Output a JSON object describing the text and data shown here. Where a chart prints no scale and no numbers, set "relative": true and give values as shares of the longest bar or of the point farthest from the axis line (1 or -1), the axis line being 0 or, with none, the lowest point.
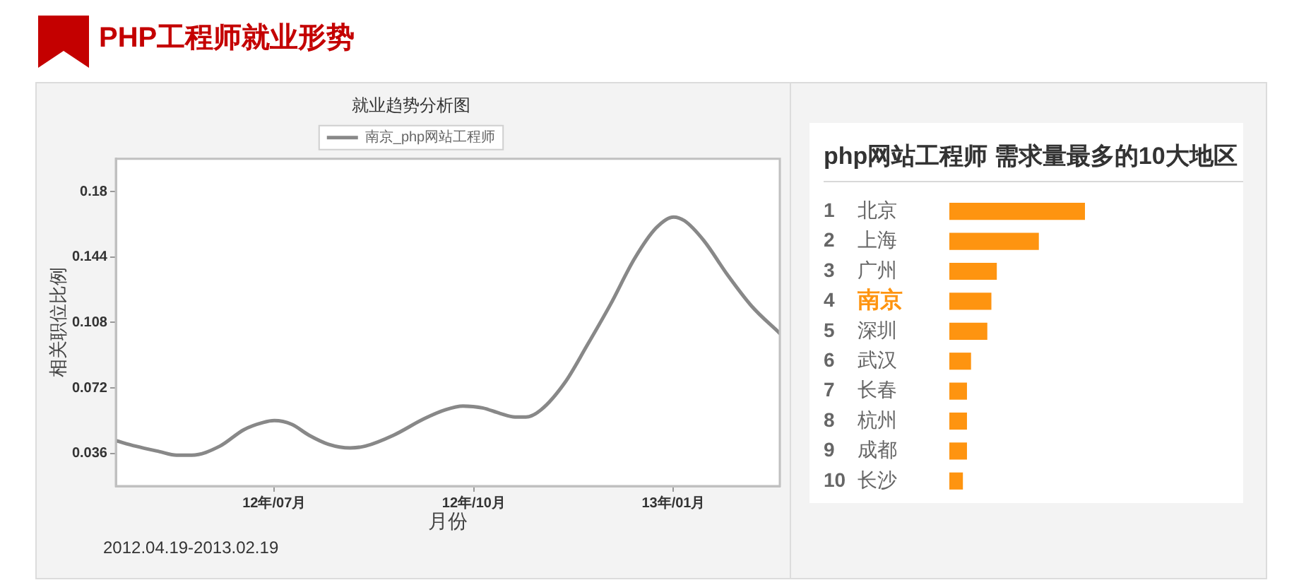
{
  "chart_data": [
    {
      "type": "other",
      "title": "PHP工程师就业形势"
    },
    {
      "type": "line",
      "title": "就业趋势分析图",
      "xlabel": "月份",
      "ylabel": "相关职位比例",
      "legend": "top",
      "x": [
        "2012-04-19",
        "2012-04-28",
        "2012-05-09",
        "2012-05-17",
        "2012-05-24",
        "2012-06-06",
        "2012-06-17",
        "2012-06-26",
        "2012-07-01",
        "2012-07-09",
        "2012-07-17",
        "2012-07-26",
        "2012-08-05",
        "2012-08-12",
        "2012-08-25",
        "2012-09-08",
        "2012-09-18",
        "2012-09-26",
        "2012-10-05",
        "2012-10-13",
        "2012-10-20",
        "2012-10-25",
        "2012-11-01",
        "2012-11-12",
        "2012-11-22",
        "2012-12-03",
        "2012-12-14",
        "2012-12-24",
        "2013-01-01",
        "2013-01-06",
        "2013-01-15",
        "2013-01-26",
        "2013-02-06",
        "2013-02-19"
      ],
      "series": [
        {
          "name": "南京_php网站工程师",
          "color": "#888888",
          "values": [
            0.043,
            0.04,
            0.037,
            0.035,
            0.035,
            0.04,
            0.049,
            0.053,
            0.054,
            0.052,
            0.046,
            0.041,
            0.039,
            0.04,
            0.046,
            0.055,
            0.06,
            0.062,
            0.061,
            0.058,
            0.056,
            0.056,
            0.06,
            0.075,
            0.095,
            0.118,
            0.143,
            0.16,
            0.166,
            0.164,
            0.153,
            0.134,
            0.117,
            0.102
          ]
        }
      ],
      "xlim": [
        "2012-04-19",
        "2013-02-19"
      ],
      "xticks": [
        {
          "value": "2012-07-01",
          "label": "12年/07月"
        },
        {
          "value": "2012-10-01",
          "label": "12年/10月"
        },
        {
          "value": "2013-01-01",
          "label": "13年/01月"
        }
      ],
      "ylim": [
        0.018,
        0.198
      ],
      "yticks": [
        0.036,
        0.072,
        0.108,
        0.144,
        0.18
      ],
      "annotations": [
        "2012.04.19-2013.02.19"
      ]
    },
    {
      "type": "bar",
      "orientation": "horizontal",
      "relative": true,
      "title": "php网站工程师 需求量最多的10大地区",
      "categories": [
        "1 北京",
        "2 上海",
        "3 广州",
        "4 南京",
        "5 深圳",
        "6 武汉",
        "7 长春",
        "8 杭州",
        "9 成都",
        "10 长沙"
      ],
      "values": [
        1,
        0.66,
        0.35,
        0.31,
        0.28,
        0.16,
        0.13,
        0.13,
        0.13,
        0.1
      ],
      "color": "#fe9410"
    }
  ]
}
